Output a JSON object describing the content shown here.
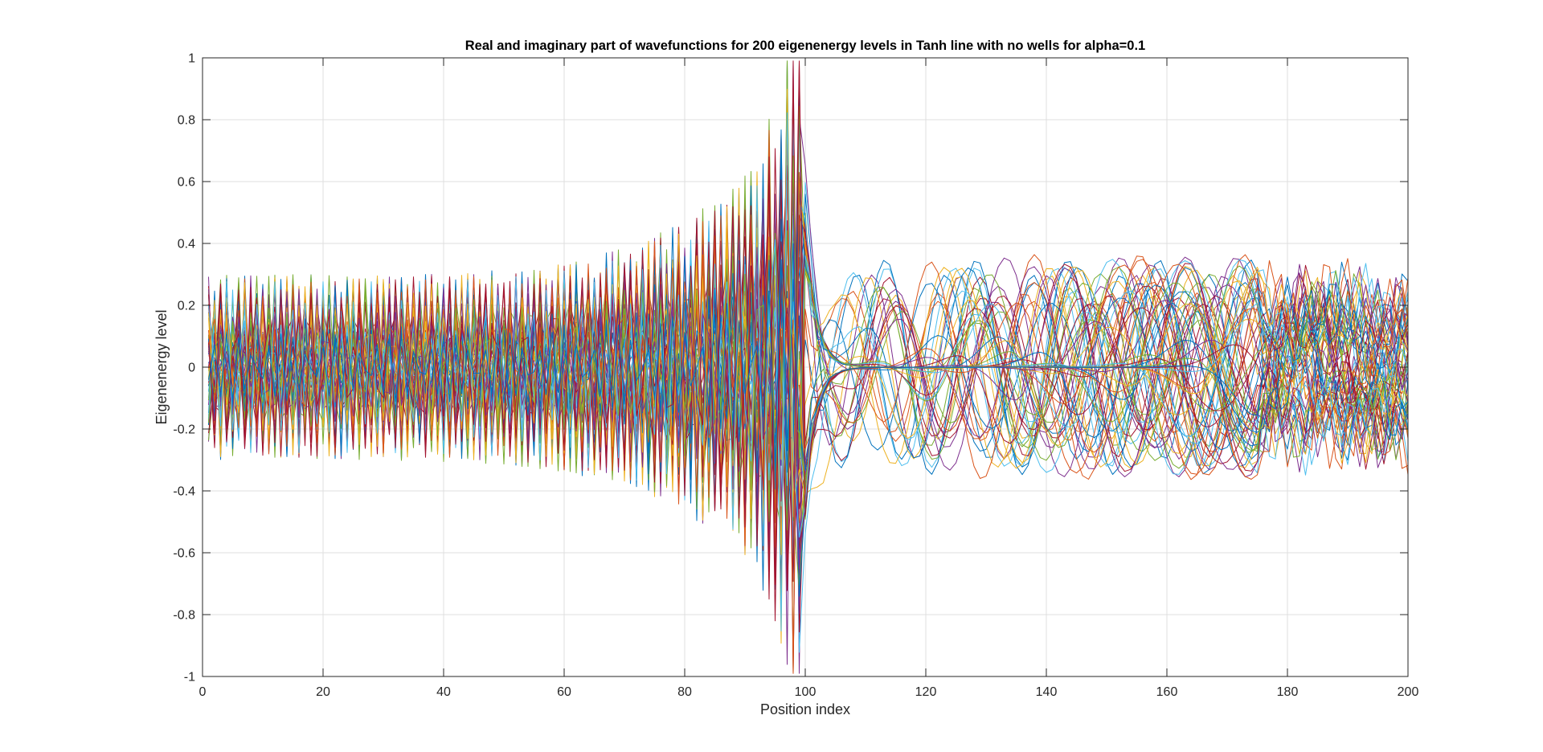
{
  "chart_data": {
    "type": "line",
    "title": "Real and imaginary part of wavefunctions for 200 eigenenergy levels in Tanh line with no wells for alpha=0.1",
    "xlabel": "Position index",
    "ylabel": "Eigenenergy level",
    "xlim": [
      0,
      200
    ],
    "ylim": [
      -1,
      1
    ],
    "xticks": [
      0,
      20,
      40,
      60,
      80,
      100,
      120,
      140,
      160,
      180,
      200
    ],
    "yticks": [
      -1,
      -0.8,
      -0.6,
      -0.4,
      -0.2,
      0,
      0.2,
      0.4,
      0.6,
      0.8,
      1
    ],
    "xtick_labels": [
      "0",
      "20",
      "40",
      "60",
      "80",
      "100",
      "120",
      "140",
      "160",
      "180",
      "200"
    ],
    "ytick_labels": [
      "-1",
      "-0.8",
      "-0.6",
      "-0.4",
      "-0.2",
      "0",
      "0.2",
      "0.4",
      "0.6",
      "0.8",
      "1"
    ],
    "grid": true,
    "box": true,
    "num_levels": 200,
    "color_order": [
      "#0072BD",
      "#D95319",
      "#EDB120",
      "#7E2F8E",
      "#77AC30",
      "#4DBEEE",
      "#A2142F"
    ],
    "series_description": "Overlaid wavefunction curves: rapid oscillations with growing amplitude for x<100 (peaking near |0.8|–|1.0| close to x≈100), and smooth broad lobes of amplitude ≈0.3–0.6 for x>100."
  }
}
